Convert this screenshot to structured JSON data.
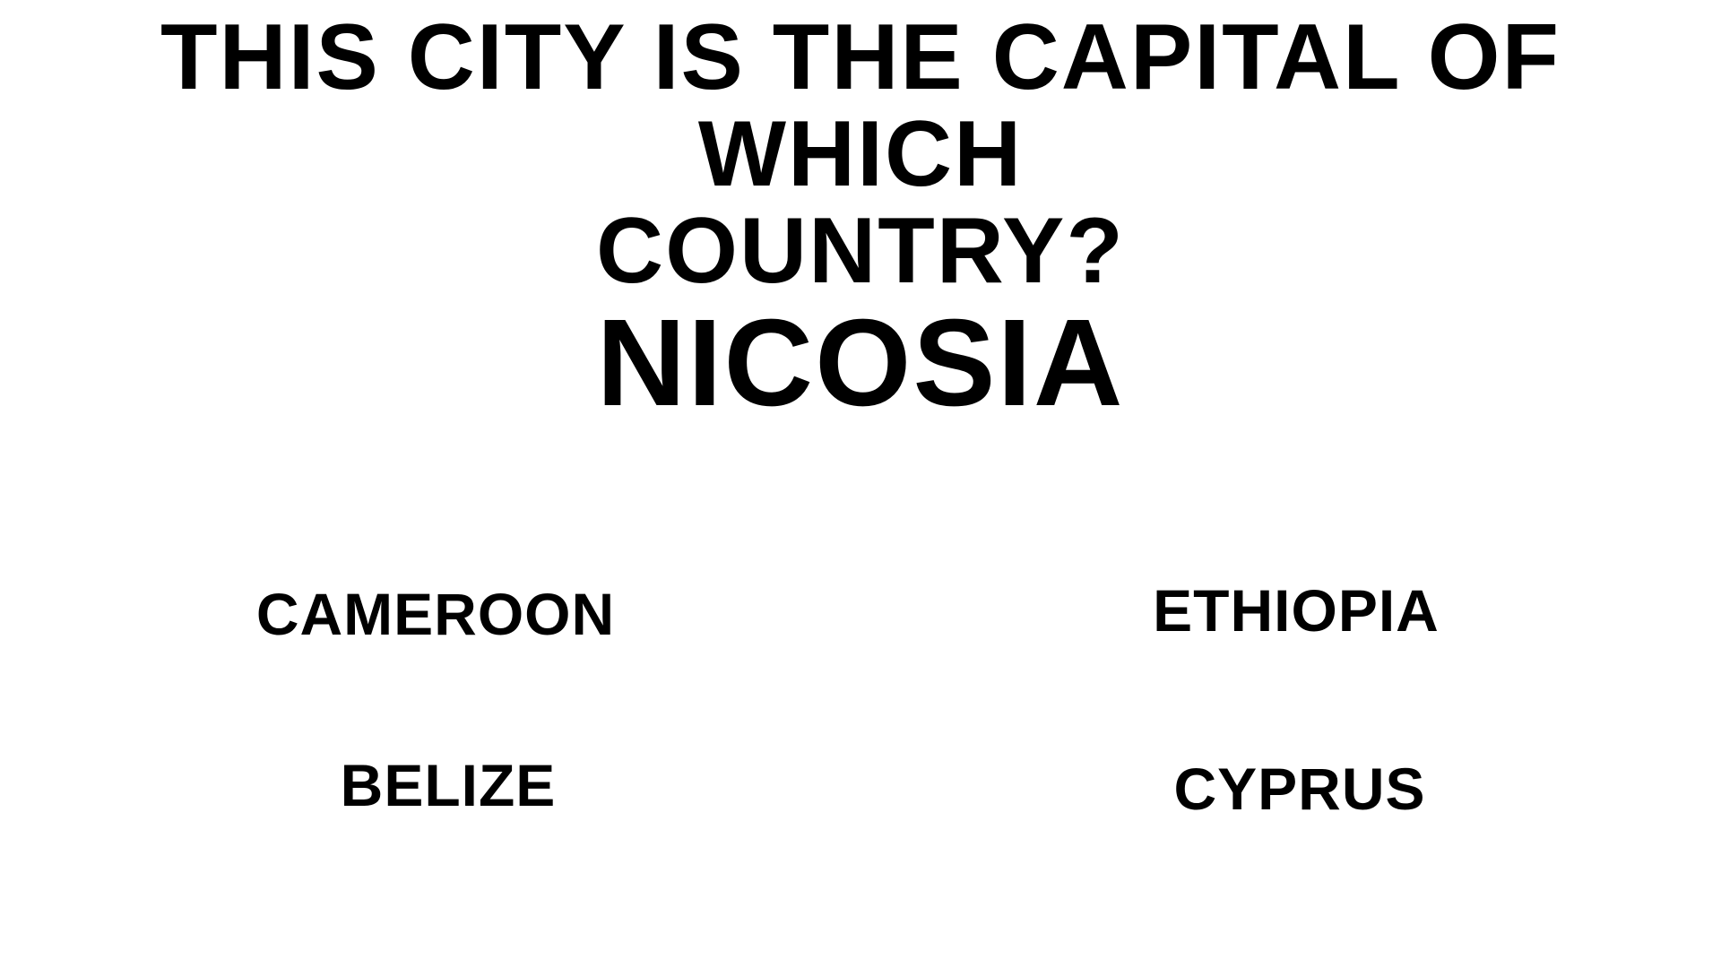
{
  "question": {
    "line1": "THIS CITY IS THE CAPITAL OF WHICH",
    "line2": "COUNTRY?"
  },
  "city": "NICOSIA",
  "options": [
    {
      "label": "CAMEROON"
    },
    {
      "label": "ETHIOPIA"
    },
    {
      "label": "BELIZE"
    },
    {
      "label": "CYPRUS"
    }
  ]
}
